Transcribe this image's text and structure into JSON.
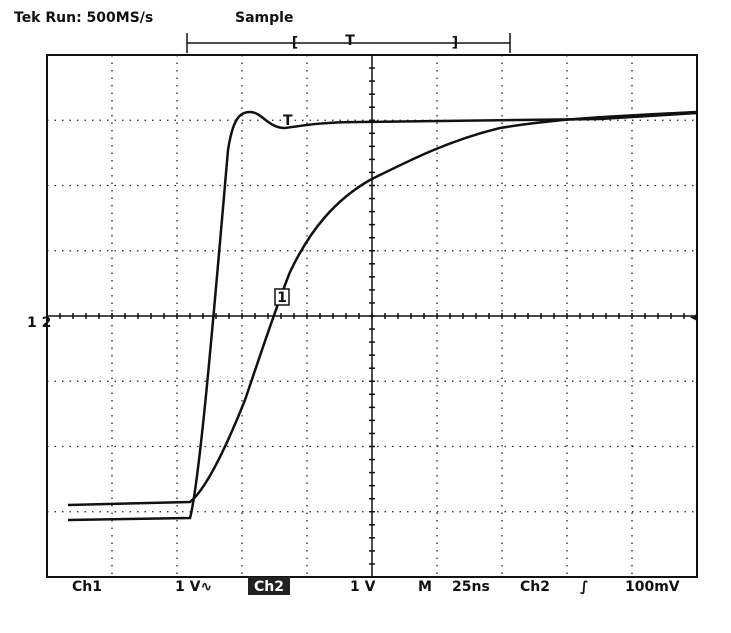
{
  "header": {
    "status": "Tek Run: 500MS/s",
    "mode": "Sample"
  },
  "trigger": {
    "bracket_left": "[",
    "marker": "T",
    "bracket_right": "]"
  },
  "screen": {
    "trace_label": "T",
    "cursor_label": "1",
    "channel_markers": "1 2",
    "trigger_level_marker": "◂"
  },
  "footer": {
    "ch1": "Ch1",
    "ch1_scale": "1 V∿",
    "ch2_box": "Ch2",
    "ch2_scale": "1 V",
    "m": "M",
    "timebase": "25ns",
    "source": "Ch2",
    "edge": "∫",
    "level": "100mV"
  }
}
